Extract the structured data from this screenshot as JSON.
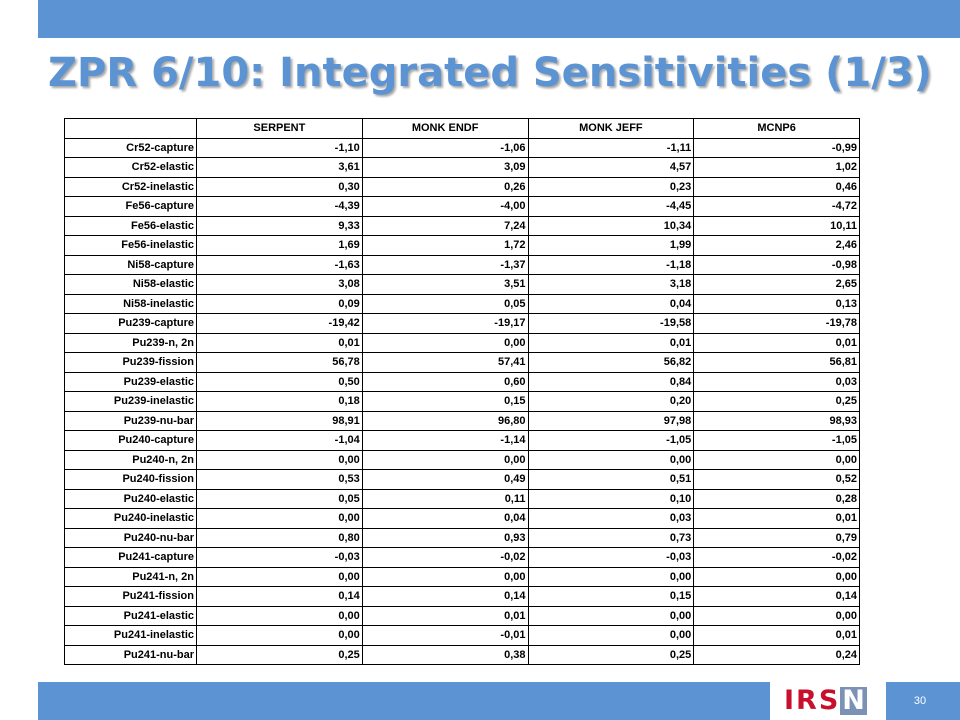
{
  "slide": {
    "title": "ZPR 6/10: Integrated Sensitivities (1/3)",
    "page_number": "30",
    "logo": {
      "text_main": "IRS",
      "text_last": "N",
      "brand_color": "#c8102e"
    },
    "accent_color": "#5b93d3"
  },
  "table": {
    "headers": [
      "",
      "SERPENT",
      "MONK ENDF",
      "MONK JEFF",
      "MCNP6"
    ],
    "rows": [
      [
        "Cr52-capture",
        "-1,10",
        "-1,06",
        "-1,11",
        "-0,99"
      ],
      [
        "Cr52-elastic",
        "3,61",
        "3,09",
        "4,57",
        "1,02"
      ],
      [
        "Cr52-inelastic",
        "0,30",
        "0,26",
        "0,23",
        "0,46"
      ],
      [
        "Fe56-capture",
        "-4,39",
        "-4,00",
        "-4,45",
        "-4,72"
      ],
      [
        "Fe56-elastic",
        "9,33",
        "7,24",
        "10,34",
        "10,11"
      ],
      [
        "Fe56-inelastic",
        "1,69",
        "1,72",
        "1,99",
        "2,46"
      ],
      [
        "Ni58-capture",
        "-1,63",
        "-1,37",
        "-1,18",
        "-0,98"
      ],
      [
        "Ni58-elastic",
        "3,08",
        "3,51",
        "3,18",
        "2,65"
      ],
      [
        "Ni58-inelastic",
        "0,09",
        "0,05",
        "0,04",
        "0,13"
      ],
      [
        "Pu239-capture",
        "-19,42",
        "-19,17",
        "-19,58",
        "-19,78"
      ],
      [
        "Pu239-n, 2n",
        "0,01",
        "0,00",
        "0,01",
        "0,01"
      ],
      [
        "Pu239-fission",
        "56,78",
        "57,41",
        "56,82",
        "56,81"
      ],
      [
        "Pu239-elastic",
        "0,50",
        "0,60",
        "0,84",
        "0,03"
      ],
      [
        "Pu239-inelastic",
        "0,18",
        "0,15",
        "0,20",
        "0,25"
      ],
      [
        "Pu239-nu-bar",
        "98,91",
        "96,80",
        "97,98",
        "98,93"
      ],
      [
        "Pu240-capture",
        "-1,04",
        "-1,14",
        "-1,05",
        "-1,05"
      ],
      [
        "Pu240-n, 2n",
        "0,00",
        "0,00",
        "0,00",
        "0,00"
      ],
      [
        "Pu240-fission",
        "0,53",
        "0,49",
        "0,51",
        "0,52"
      ],
      [
        "Pu240-elastic",
        "0,05",
        "0,11",
        "0,10",
        "0,28"
      ],
      [
        "Pu240-inelastic",
        "0,00",
        "0,04",
        "0,03",
        "0,01"
      ],
      [
        "Pu240-nu-bar",
        "0,80",
        "0,93",
        "0,73",
        "0,79"
      ],
      [
        "Pu241-capture",
        "-0,03",
        "-0,02",
        "-0,03",
        "-0,02"
      ],
      [
        "Pu241-n, 2n",
        "0,00",
        "0,00",
        "0,00",
        "0,00"
      ],
      [
        "Pu241-fission",
        "0,14",
        "0,14",
        "0,15",
        "0,14"
      ],
      [
        "Pu241-elastic",
        "0,00",
        "0,01",
        "0,00",
        "0,00"
      ],
      [
        "Pu241-inelastic",
        "0,00",
        "-0,01",
        "0,00",
        "0,01"
      ],
      [
        "Pu241-nu-bar",
        "0,25",
        "0,38",
        "0,25",
        "0,24"
      ]
    ]
  }
}
